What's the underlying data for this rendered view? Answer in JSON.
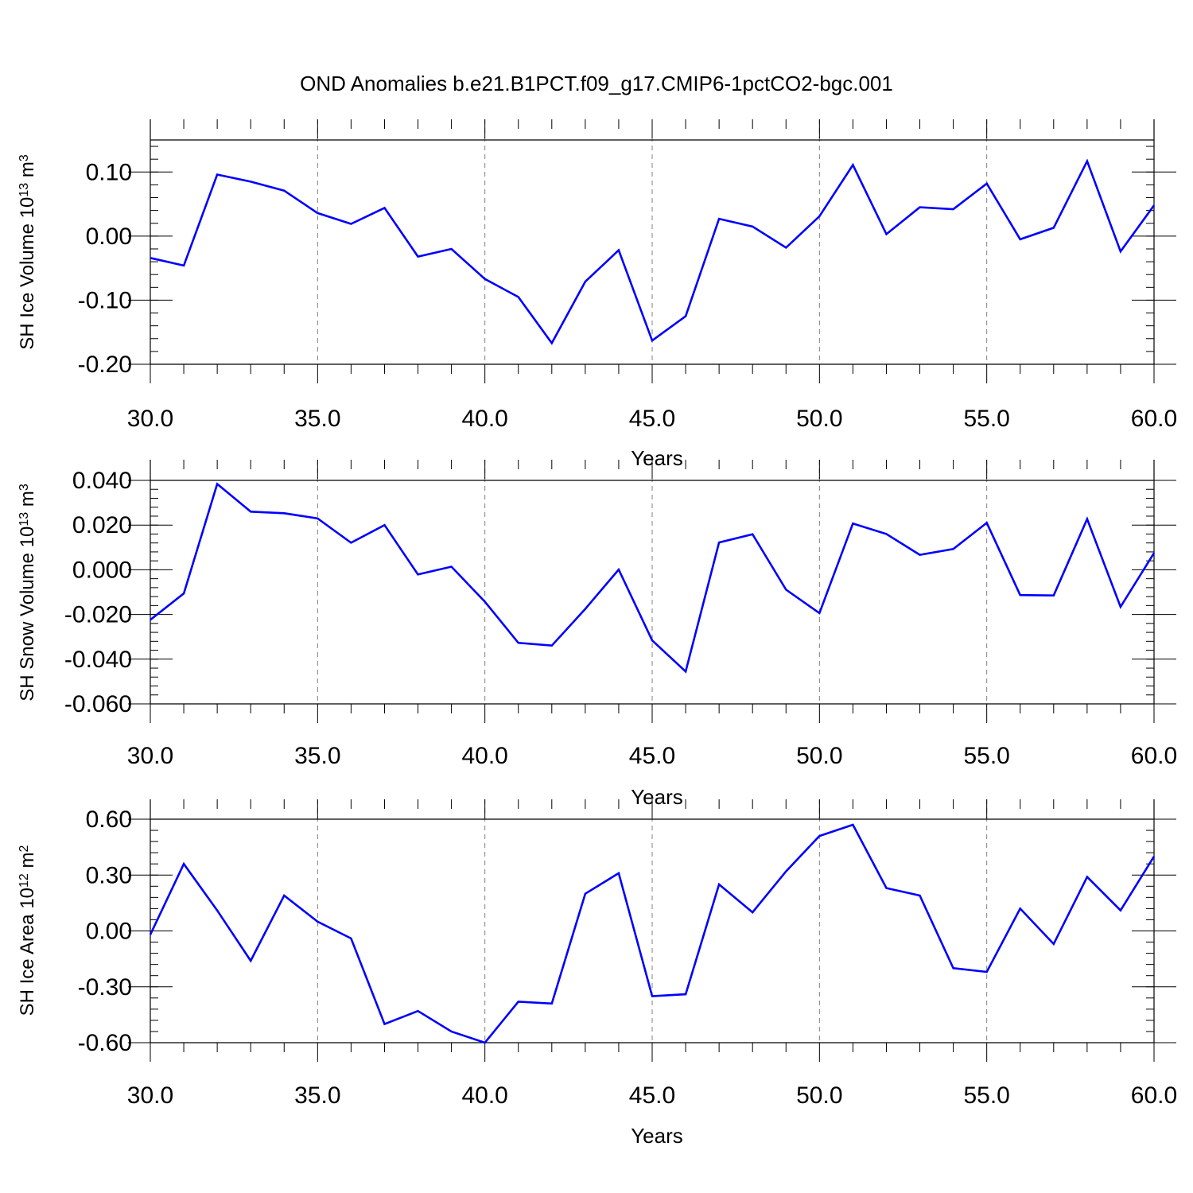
{
  "title": "OND Anomalies b.e21.B1PCT.f09_g17.CMIP6-1pctCO2-bgc.001",
  "colors": {
    "line": "#0000ff",
    "axis": "#000000",
    "grid": "#808080"
  },
  "chart_data": [
    {
      "type": "line",
      "ylabel": {
        "prefix": "SH Ice Volume 10",
        "exponent": "13",
        "unit": " m",
        "unit_exponent": "3"
      },
      "xlabel": "Years",
      "xlim": [
        30,
        60
      ],
      "ylim": [
        -0.2,
        0.15
      ],
      "x_ticks": [
        "30.0",
        "35.0",
        "40.0",
        "45.0",
        "50.0",
        "55.0",
        "60.0"
      ],
      "y_ticks": [
        "-0.20",
        "-0.10",
        "0.00",
        "0.10"
      ],
      "y_tick_values": [
        -0.2,
        -0.1,
        0.0,
        0.1
      ],
      "grid": "dashed vertical at major x ticks",
      "x": [
        30,
        31,
        32,
        33,
        34,
        35,
        36,
        37,
        38,
        39,
        40,
        41,
        42,
        43,
        44,
        45,
        46,
        47,
        48,
        49,
        50,
        51,
        52,
        53,
        54,
        55,
        56,
        57,
        58,
        59,
        60
      ],
      "series": [
        {
          "values": [
            -0.034,
            -0.046,
            0.096,
            0.085,
            0.071,
            0.036,
            0.019,
            0.044,
            -0.032,
            -0.02,
            -0.067,
            -0.095,
            -0.167,
            -0.071,
            -0.022,
            -0.163,
            -0.125,
            0.027,
            0.015,
            -0.018,
            0.031,
            0.111,
            0.003,
            0.045,
            0.042,
            0.082,
            -0.005,
            0.013,
            0.117,
            -0.024,
            0.048
          ]
        }
      ]
    },
    {
      "type": "line",
      "ylabel": {
        "prefix": "SH Snow Volume 10",
        "exponent": "13",
        "unit": " m",
        "unit_exponent": "3"
      },
      "xlabel": "Years",
      "xlim": [
        30,
        60
      ],
      "ylim": [
        -0.06,
        0.04
      ],
      "x_ticks": [
        "30.0",
        "35.0",
        "40.0",
        "45.0",
        "50.0",
        "55.0",
        "60.0"
      ],
      "y_ticks": [
        "-0.060",
        "-0.040",
        "-0.020",
        "0.000",
        "0.020",
        "0.040"
      ],
      "y_tick_values": [
        -0.06,
        -0.04,
        -0.02,
        0.0,
        0.02,
        0.04
      ],
      "grid": "dashed vertical at major x ticks",
      "x": [
        30,
        31,
        32,
        33,
        34,
        35,
        36,
        37,
        38,
        39,
        40,
        41,
        42,
        43,
        44,
        45,
        46,
        47,
        48,
        49,
        50,
        51,
        52,
        53,
        54,
        55,
        56,
        57,
        58,
        59,
        60
      ],
      "series": [
        {
          "values": [
            -0.0224,
            -0.0106,
            0.0384,
            0.026,
            0.0253,
            0.023,
            0.0121,
            0.02,
            -0.0021,
            0.0014,
            -0.0143,
            -0.0327,
            -0.0339,
            -0.0175,
            0.0001,
            -0.0316,
            -0.0455,
            0.0122,
            0.0159,
            -0.0089,
            -0.0194,
            0.0207,
            0.016,
            0.0067,
            0.0093,
            0.021,
            -0.0113,
            -0.0115,
            0.0227,
            -0.0166,
            0.0075
          ]
        }
      ]
    },
    {
      "type": "line",
      "ylabel": {
        "prefix": "SH Ice Area 10",
        "exponent": "12",
        "unit": " m",
        "unit_exponent": "2"
      },
      "xlabel": "Years",
      "xlim": [
        30,
        60
      ],
      "ylim": [
        -0.6,
        0.6
      ],
      "x_ticks": [
        "30.0",
        "35.0",
        "40.0",
        "45.0",
        "50.0",
        "55.0",
        "60.0"
      ],
      "y_ticks": [
        "-0.60",
        "-0.30",
        "0.00",
        "0.30",
        "0.60"
      ],
      "y_tick_values": [
        -0.6,
        -0.3,
        0.0,
        0.3,
        0.6
      ],
      "grid": "dashed vertical at major x ticks",
      "x": [
        30,
        31,
        32,
        33,
        34,
        35,
        36,
        37,
        38,
        39,
        40,
        41,
        42,
        43,
        44,
        45,
        46,
        47,
        48,
        49,
        50,
        51,
        52,
        53,
        54,
        55,
        56,
        57,
        58,
        59,
        60
      ],
      "series": [
        {
          "values": [
            -0.02,
            0.36,
            0.11,
            -0.16,
            0.19,
            0.05,
            -0.04,
            -0.5,
            -0.43,
            -0.54,
            -0.6,
            -0.38,
            -0.39,
            0.2,
            0.31,
            -0.35,
            -0.34,
            0.25,
            0.1,
            0.32,
            0.51,
            0.57,
            0.23,
            0.19,
            -0.2,
            -0.22,
            0.12,
            -0.07,
            0.29,
            0.11,
            0.4
          ]
        }
      ]
    }
  ]
}
